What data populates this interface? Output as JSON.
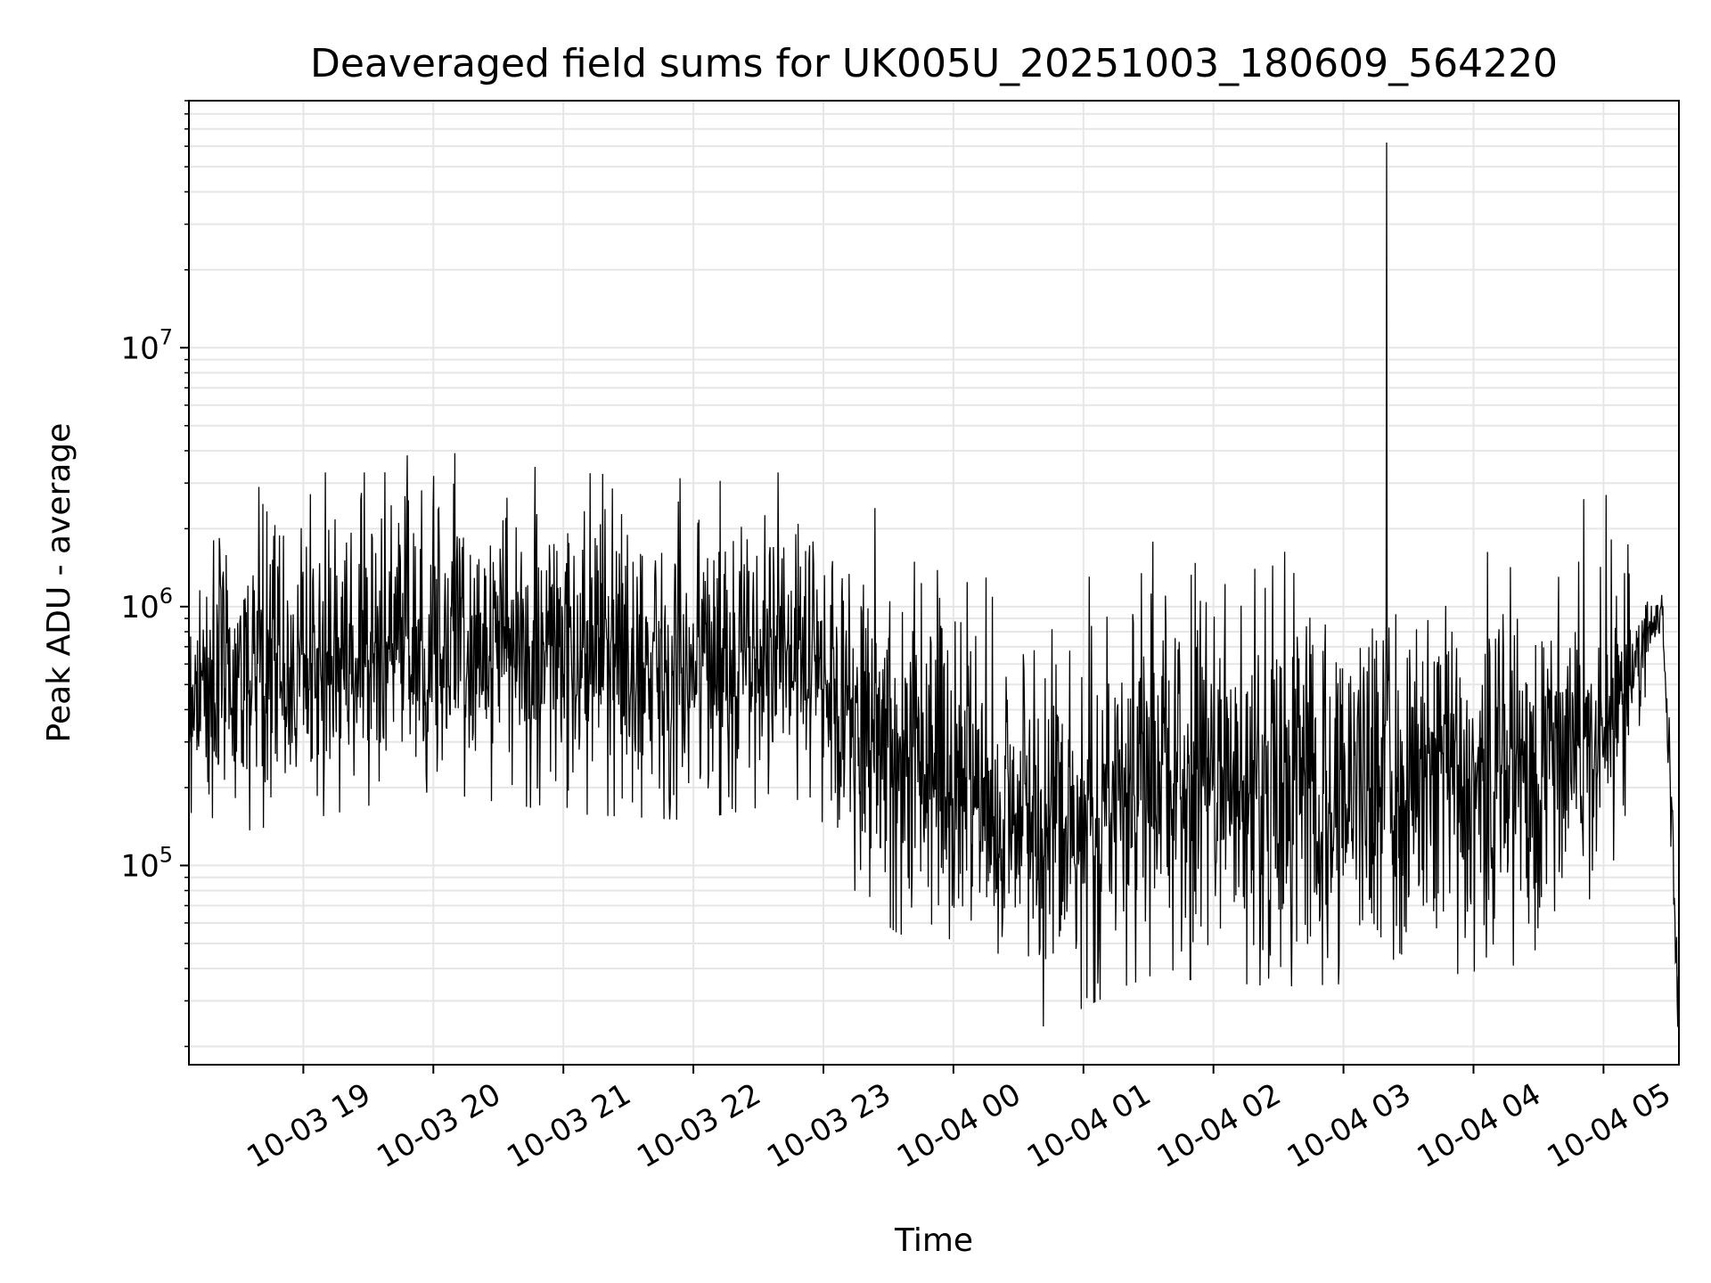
{
  "chart_data": {
    "type": "line",
    "title": "Deaveraged field sums for UK005U_20251003_180609_564220",
    "xlabel": "Time",
    "ylabel": "Peak ADU - average",
    "yscale": "log",
    "ylim": [
      17000,
      90000000
    ],
    "xlim_hours": [
      -0.88,
      10.58
    ],
    "x_ticks": [
      {
        "hour": 0,
        "label": "10-03 19"
      },
      {
        "hour": 1,
        "label": "10-03 20"
      },
      {
        "hour": 2,
        "label": "10-03 21"
      },
      {
        "hour": 3,
        "label": "10-03 22"
      },
      {
        "hour": 4,
        "label": "10-03 23"
      },
      {
        "hour": 5,
        "label": "10-04 00"
      },
      {
        "hour": 6,
        "label": "10-04 01"
      },
      {
        "hour": 7,
        "label": "10-04 02"
      },
      {
        "hour": 8,
        "label": "10-04 03"
      },
      {
        "hour": 9,
        "label": "10-04 04"
      },
      {
        "hour": 10,
        "label": "10-04 05"
      }
    ],
    "y_ticks": [
      {
        "value": 100000,
        "base": "10",
        "exp": "5"
      },
      {
        "value": 1000000,
        "base": "10",
        "exp": "6"
      },
      {
        "value": 10000000,
        "base": "10",
        "exp": "7"
      }
    ],
    "grid": true,
    "line_color": "#000000",
    "grid_color": "#e6e6e6",
    "series": [
      {
        "name": "Peak ADU - average",
        "note": "dense noisy series; anchor envelope below, signal generated between anchors",
        "baseline_anchors": [
          {
            "hour": -0.88,
            "median": 500000,
            "spread": 0.55
          },
          {
            "hour": 0.0,
            "median": 600000,
            "spread": 0.55
          },
          {
            "hour": 1.0,
            "median": 780000,
            "spread": 0.55
          },
          {
            "hour": 2.0,
            "median": 640000,
            "spread": 0.55
          },
          {
            "hour": 3.0,
            "median": 600000,
            "spread": 0.55
          },
          {
            "hour": 3.9,
            "median": 650000,
            "spread": 0.5
          },
          {
            "hour": 4.3,
            "median": 360000,
            "spread": 0.65
          },
          {
            "hour": 5.0,
            "median": 220000,
            "spread": 0.7
          },
          {
            "hour": 5.7,
            "median": 140000,
            "spread": 0.7
          },
          {
            "hour": 6.5,
            "median": 220000,
            "spread": 0.7
          },
          {
            "hour": 7.5,
            "median": 200000,
            "spread": 0.7
          },
          {
            "hour": 8.5,
            "median": 210000,
            "spread": 0.7
          },
          {
            "hour": 9.5,
            "median": 250000,
            "spread": 0.7
          },
          {
            "hour": 10.1,
            "median": 400000,
            "spread": 0.55
          },
          {
            "hour": 10.35,
            "median": 800000,
            "spread": 0.15
          },
          {
            "hour": 10.45,
            "median": 1000000,
            "spread": 0.1
          },
          {
            "hour": 10.52,
            "median": 150000,
            "spread": 0.2
          },
          {
            "hour": 10.58,
            "median": 30000,
            "spread": 0.2
          }
        ],
        "notable_peaks": [
          {
            "hour": 0.17,
            "value": 3300000
          },
          {
            "hour": 0.47,
            "value": 3300000
          },
          {
            "hour": 1.0,
            "value": 3200000
          },
          {
            "hour": 3.65,
            "value": 3300000
          },
          {
            "hour": 8.33,
            "value": 62000000
          },
          {
            "hour": 9.85,
            "value": 2600000
          },
          {
            "hour": 10.02,
            "value": 2700000
          }
        ]
      }
    ]
  }
}
